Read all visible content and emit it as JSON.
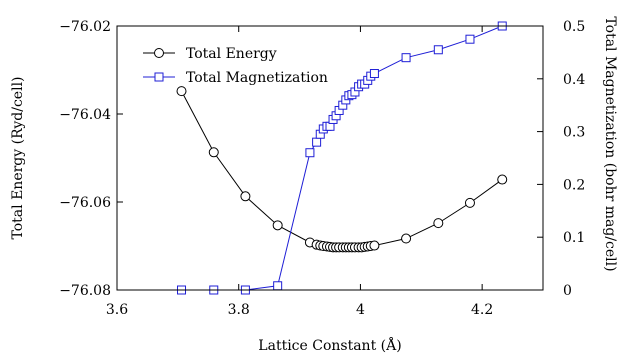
{
  "chart_data": {
    "type": "line",
    "xlabel": "Lattice Constant (Å)",
    "ylabel": "Total Energy (Ryd/cell)",
    "y2label": "Total Magnetization (bohr mag/cell)",
    "xlim": [
      3.6,
      4.3
    ],
    "ylim": [
      -76.08,
      -76.02
    ],
    "y2lim": [
      0,
      0.5
    ],
    "x_ticks": [
      3.6,
      3.8,
      4.0,
      4.2
    ],
    "x_tick_labels": [
      "3.6",
      "3.8",
      "4",
      "4.2"
    ],
    "y_ticks": [
      -76.08,
      -76.06,
      -76.04,
      -76.02
    ],
    "y_tick_labels": [
      "−76.08",
      "−76.06",
      "−76.04",
      "−76.02"
    ],
    "y2_ticks": [
      0,
      0.1,
      0.2,
      0.3,
      0.4,
      0.5
    ],
    "y2_tick_labels": [
      "0",
      "0.1",
      "0.2",
      "0.3",
      "0.4",
      "0.5"
    ],
    "grid": false,
    "legend_position": "top-left",
    "series": [
      {
        "name": "Total Energy",
        "axis": "left",
        "marker": "circle",
        "color": "#000000",
        "x": [
          3.706,
          3.759,
          3.811,
          3.864,
          3.917,
          3.928,
          3.934,
          3.939,
          3.945,
          3.95,
          3.955,
          3.96,
          3.965,
          3.971,
          3.976,
          3.981,
          3.986,
          3.991,
          3.997,
          4.002,
          4.007,
          4.012,
          4.017,
          4.023,
          4.075,
          4.128,
          4.18,
          4.233
        ],
        "values": [
          -76.0348,
          -76.0487,
          -76.0587,
          -76.0653,
          -76.0692,
          -76.0697,
          -76.0699,
          -76.07,
          -76.0701,
          -76.0702,
          -76.0703,
          -76.0703,
          -76.0703,
          -76.0703,
          -76.0703,
          -76.0703,
          -76.0703,
          -76.0703,
          -76.0703,
          -76.0703,
          -76.0702,
          -76.0701,
          -76.07,
          -76.0699,
          -76.0683,
          -76.0648,
          -76.0602,
          -76.0549
        ]
      },
      {
        "name": "Total Magnetization",
        "axis": "right",
        "marker": "square",
        "color": "#1f1fd6",
        "x": [
          3.706,
          3.759,
          3.811,
          3.864,
          3.917,
          3.928,
          3.934,
          3.939,
          3.945,
          3.95,
          3.955,
          3.96,
          3.965,
          3.971,
          3.976,
          3.981,
          3.986,
          3.991,
          3.997,
          4.002,
          4.007,
          4.012,
          4.017,
          4.023,
          4.075,
          4.128,
          4.18,
          4.233
        ],
        "values": [
          0.0,
          0.0,
          0.0,
          0.008,
          0.26,
          0.28,
          0.295,
          0.305,
          0.31,
          0.31,
          0.323,
          0.33,
          0.34,
          0.35,
          0.36,
          0.368,
          0.37,
          0.375,
          0.385,
          0.39,
          0.39,
          0.397,
          0.405,
          0.41,
          0.44,
          0.455,
          0.475,
          0.5
        ]
      }
    ]
  }
}
